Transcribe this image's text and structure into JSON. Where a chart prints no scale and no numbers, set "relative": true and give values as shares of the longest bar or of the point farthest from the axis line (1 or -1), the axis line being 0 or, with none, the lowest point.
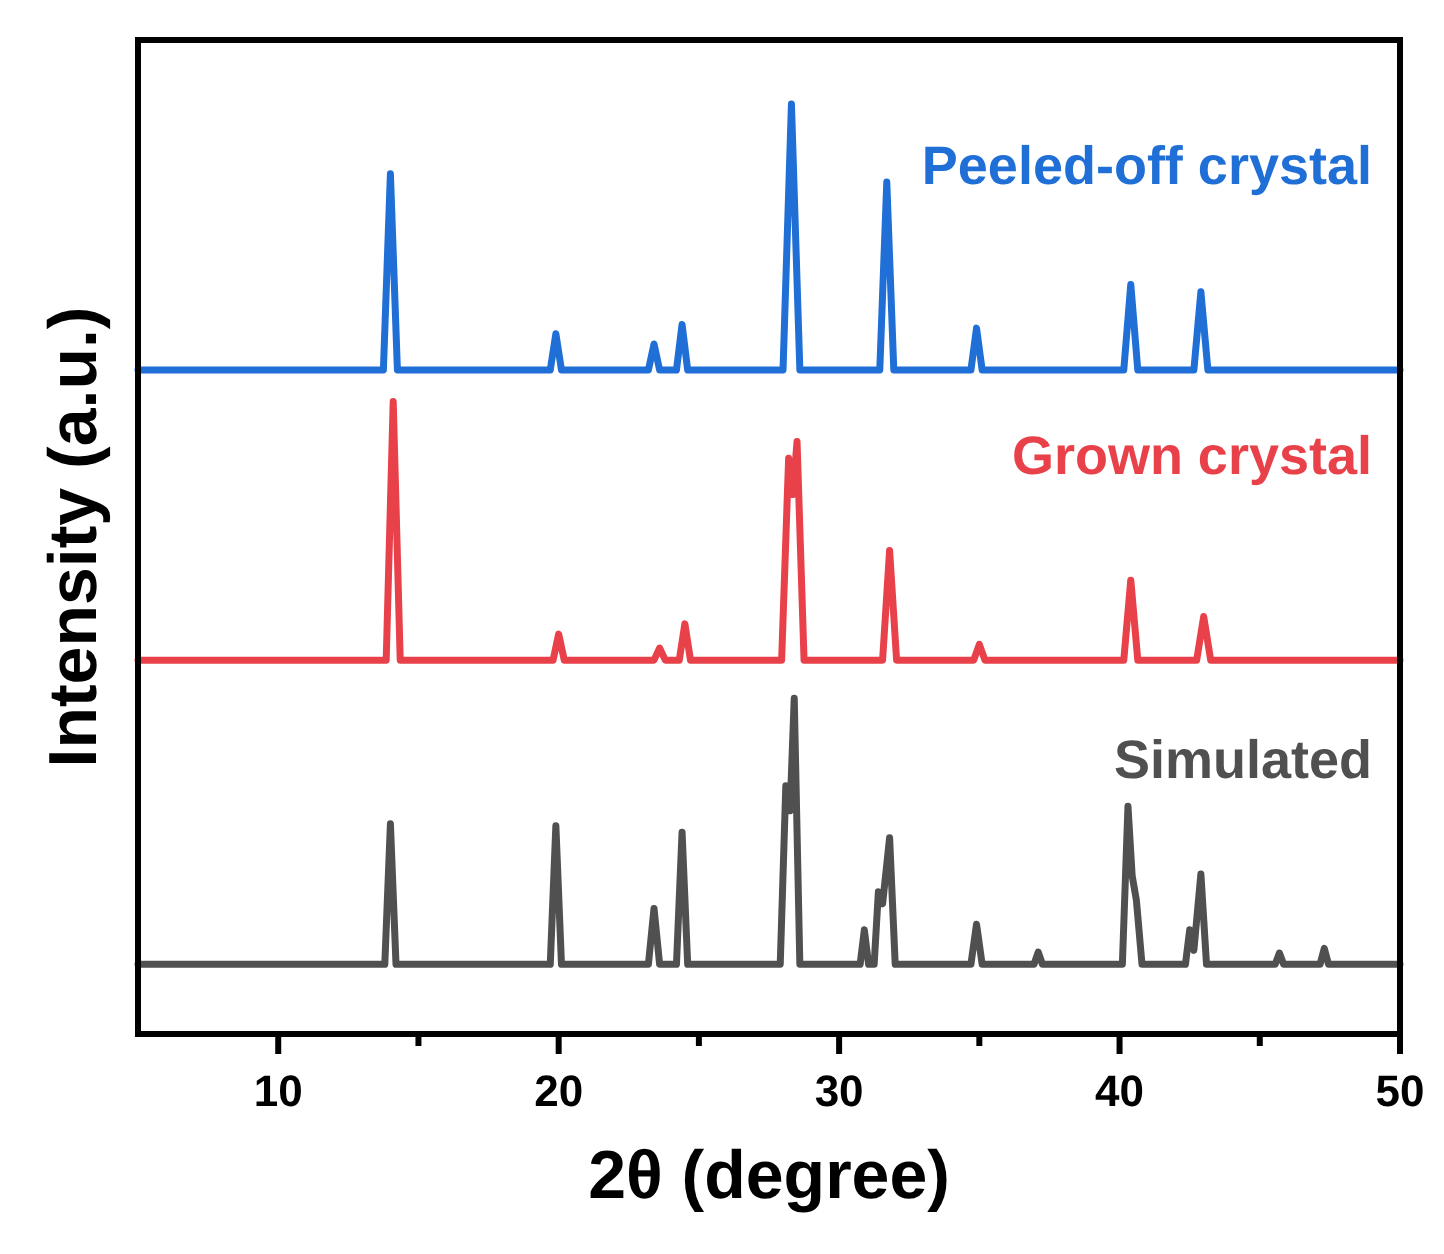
{
  "chart_data": {
    "type": "line",
    "relative": true,
    "xlabel": "2θ (degree)",
    "ylabel": "Intensity (a.u.)",
    "xlim": [
      5,
      50
    ],
    "xticks": [
      10,
      {
        "value": 15,
        "label": null
      },
      20,
      {
        "value": 25,
        "label": null
      },
      30,
      {
        "value": 35,
        "label": null
      },
      40,
      {
        "value": 45,
        "label": null
      },
      50
    ],
    "tick_labels": "x",
    "grid": false,
    "marker": "none",
    "line_style": "solid",
    "series": [
      {
        "name": "Peeled-off crystal",
        "color": "#1f6fd6",
        "x": [
          5,
          13.75,
          14.0,
          14.25,
          19.7,
          19.9,
          20.1,
          23.2,
          23.4,
          23.6,
          24.2,
          24.4,
          24.6,
          28.0,
          28.3,
          28.6,
          31.45,
          31.7,
          31.95,
          34.7,
          34.9,
          35.1,
          40.15,
          40.4,
          40.65,
          42.65,
          42.9,
          43.15,
          50
        ],
        "values": [
          0.714,
          0.714,
          0.925,
          0.714,
          0.714,
          0.753,
          0.714,
          0.714,
          0.742,
          0.714,
          0.714,
          0.763,
          0.714,
          0.714,
          1.0,
          0.714,
          0.714,
          0.916,
          0.714,
          0.714,
          0.759,
          0.714,
          0.714,
          0.806,
          0.714,
          0.714,
          0.798,
          0.714,
          0.714
        ]
      },
      {
        "name": "Grown crystal",
        "color": "#e8414a",
        "x": [
          5,
          13.85,
          14.1,
          14.35,
          19.8,
          20.0,
          20.2,
          23.4,
          23.6,
          23.8,
          24.3,
          24.5,
          24.7,
          27.95,
          28.2,
          28.35,
          28.5,
          28.75,
          31.55,
          31.8,
          32.05,
          34.8,
          35.0,
          35.2,
          40.15,
          40.4,
          40.65,
          42.75,
          43.0,
          43.25,
          50
        ],
        "values": [
          0.402,
          0.402,
          0.68,
          0.402,
          0.402,
          0.43,
          0.402,
          0.402,
          0.415,
          0.402,
          0.402,
          0.441,
          0.402,
          0.402,
          0.619,
          0.58,
          0.637,
          0.402,
          0.402,
          0.52,
          0.402,
          0.402,
          0.419,
          0.402,
          0.402,
          0.488,
          0.402,
          0.402,
          0.449,
          0.402,
          0.402
        ]
      },
      {
        "name": "Simulated",
        "color": "#505050",
        "x": [
          5,
          13.8,
          14.0,
          14.2,
          19.7,
          19.9,
          20.1,
          23.2,
          23.4,
          23.6,
          24.2,
          24.4,
          24.6,
          27.9,
          28.1,
          28.25,
          28.4,
          28.6,
          30.75,
          30.9,
          31.05,
          31.25,
          31.4,
          31.55,
          31.8,
          32.0,
          34.7,
          34.9,
          35.1,
          36.95,
          37.1,
          37.25,
          40.1,
          40.3,
          40.45,
          40.6,
          40.8,
          42.35,
          42.5,
          42.65,
          42.9,
          43.1,
          45.55,
          45.7,
          45.85,
          47.15,
          47.3,
          47.45,
          50
        ],
        "values": [
          0.075,
          0.075,
          0.226,
          0.075,
          0.075,
          0.224,
          0.075,
          0.075,
          0.135,
          0.075,
          0.075,
          0.217,
          0.075,
          0.075,
          0.267,
          0.24,
          0.361,
          0.075,
          0.075,
          0.112,
          0.075,
          0.075,
          0.153,
          0.14,
          0.211,
          0.075,
          0.075,
          0.118,
          0.075,
          0.075,
          0.088,
          0.075,
          0.075,
          0.245,
          0.17,
          0.144,
          0.075,
          0.075,
          0.112,
          0.09,
          0.172,
          0.075,
          0.075,
          0.087,
          0.075,
          0.075,
          0.092,
          0.075,
          0.075
        ]
      }
    ]
  }
}
